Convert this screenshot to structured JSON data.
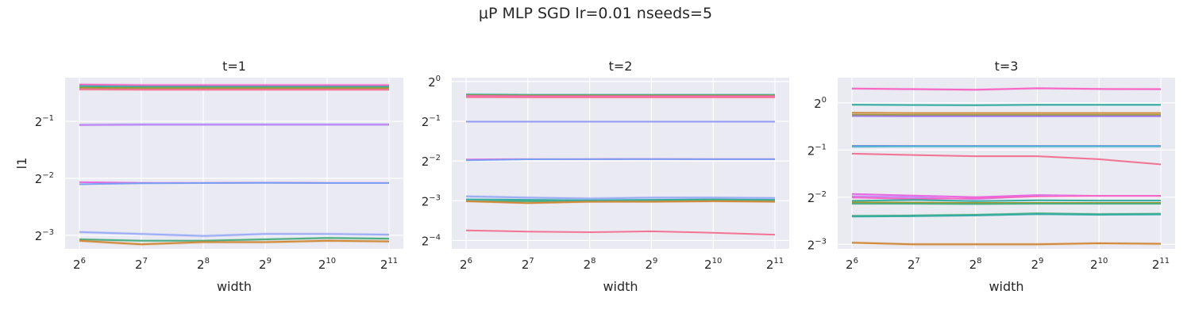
{
  "figure": {
    "title": "μP MLP SGD lr=0.01 nseeds=5"
  },
  "chart_data": [
    {
      "type": "line",
      "title": "t=1",
      "xlabel": "width",
      "ylabel": "l1",
      "x_scale": "log2",
      "y_scale": "log2",
      "x": [
        64,
        128,
        256,
        512,
        1024,
        2048
      ],
      "xticks": [
        {
          "base": "2",
          "exp": "6"
        },
        {
          "base": "2",
          "exp": "7"
        },
        {
          "base": "2",
          "exp": "8"
        },
        {
          "base": "2",
          "exp": "9"
        },
        {
          "base": "2",
          "exp": "10"
        },
        {
          "base": "2",
          "exp": "11"
        }
      ],
      "yticks": [
        {
          "base": "2",
          "exp": "−1",
          "value": 0.5
        },
        {
          "base": "2",
          "exp": "−2",
          "value": 0.25
        },
        {
          "base": "2",
          "exp": "−3",
          "value": 0.125
        }
      ],
      "ylim": [
        0.106,
        0.85
      ],
      "grid": true,
      "series": [
        {
          "color": "#f766c5",
          "values": [
            0.781,
            0.776,
            0.776,
            0.776,
            0.776,
            0.776
          ],
          "band": 0.006
        },
        {
          "color": "#36ada4",
          "values": [
            0.766,
            0.761,
            0.761,
            0.761,
            0.761,
            0.761
          ],
          "band": 0.005
        },
        {
          "color": "#9a9a30",
          "values": [
            0.751,
            0.748,
            0.748,
            0.748,
            0.748,
            0.748
          ],
          "band": 0.005
        },
        {
          "color": "#f37394",
          "values": [
            0.737,
            0.735,
            0.735,
            0.735,
            0.735,
            0.735
          ],
          "band": 0.005
        },
        {
          "color": "#8f9af4",
          "values": [
            0.479,
            0.481,
            0.481,
            0.481,
            0.481,
            0.481
          ],
          "band": 0.006
        },
        {
          "color": "#c58af9",
          "values": [
            0.478,
            0.48,
            0.48,
            0.48,
            0.48,
            0.48
          ],
          "band": 0.004
        },
        {
          "color": "#e86ae0",
          "values": [
            0.2385,
            0.2365,
            0.2365,
            0.237,
            0.2365,
            0.2365
          ],
          "band": 0.0025
        },
        {
          "color": "#7a9ef2",
          "values": [
            0.2325,
            0.2355,
            0.236,
            0.2365,
            0.236,
            0.236
          ],
          "band": 0.003
        },
        {
          "color": "#9cadf5",
          "values": [
            0.13,
            0.127,
            0.124,
            0.127,
            0.127,
            0.126
          ],
          "band": 0.006
        },
        {
          "color": "#4cae83",
          "values": [
            0.119,
            0.117,
            0.117,
            0.119,
            0.121,
            0.12
          ],
          "band": 0.005
        },
        {
          "color": "#cf8a3a",
          "values": [
            0.117,
            0.112,
            0.115,
            0.115,
            0.117,
            0.116
          ],
          "band": 0.006
        }
      ]
    },
    {
      "type": "line",
      "title": "t=2",
      "xlabel": "width",
      "ylabel": "",
      "x_scale": "log2",
      "y_scale": "log2",
      "x": [
        64,
        128,
        256,
        512,
        1024,
        2048
      ],
      "xticks": [
        {
          "base": "2",
          "exp": "6"
        },
        {
          "base": "2",
          "exp": "7"
        },
        {
          "base": "2",
          "exp": "8"
        },
        {
          "base": "2",
          "exp": "9"
        },
        {
          "base": "2",
          "exp": "10"
        },
        {
          "base": "2",
          "exp": "11"
        }
      ],
      "yticks": [
        {
          "base": "2",
          "exp": "0",
          "value": 1
        },
        {
          "base": "2",
          "exp": "−1",
          "value": 0.5
        },
        {
          "base": "2",
          "exp": "−2",
          "value": 0.25
        },
        {
          "base": "2",
          "exp": "−3",
          "value": 0.125
        },
        {
          "base": "2",
          "exp": "−4",
          "value": 0.0625
        }
      ],
      "ylim": [
        0.054,
        1.07
      ],
      "grid": true,
      "series": [
        {
          "color": "#36ada4",
          "values": [
            0.797,
            0.793,
            0.793,
            0.793,
            0.793,
            0.793
          ],
          "band": 0.008
        },
        {
          "color": "#9a9a30",
          "values": [
            0.787,
            0.783,
            0.783,
            0.783,
            0.783,
            0.783
          ],
          "band": 0.006
        },
        {
          "color": "#f766c5",
          "values": [
            0.777,
            0.773,
            0.773,
            0.773,
            0.773,
            0.773
          ],
          "band": 0.006
        },
        {
          "color": "#f37394",
          "values": [
            0.762,
            0.76,
            0.76,
            0.76,
            0.76,
            0.76
          ],
          "band": 0.006
        },
        {
          "color": "#8f9af4",
          "values": [
            0.4965,
            0.4965,
            0.4965,
            0.4965,
            0.4965,
            0.4965
          ],
          "band": 0.004
        },
        {
          "color": "#e86ae0",
          "values": [
            0.2565,
            0.2585,
            0.2585,
            0.259,
            0.2585,
            0.2585
          ],
          "band": 0.003
        },
        {
          "color": "#7a9ef2",
          "values": [
            0.253,
            0.2575,
            0.258,
            0.2585,
            0.258,
            0.258
          ],
          "band": 0.003
        },
        {
          "color": "#9cadf5",
          "values": [
            0.135,
            0.132,
            0.13,
            0.132,
            0.132,
            0.131
          ],
          "band": 0.008
        },
        {
          "color": "#36ada4",
          "values": [
            0.128,
            0.127,
            0.126,
            0.127,
            0.128,
            0.127
          ],
          "band": 0.005
        },
        {
          "color": "#4cae83",
          "values": [
            0.124,
            0.124,
            0.123,
            0.124,
            0.126,
            0.125
          ],
          "band": 0.006
        },
        {
          "color": "#cf8a3a",
          "values": [
            0.124,
            0.12,
            0.123,
            0.123,
            0.124,
            0.123
          ],
          "band": 0.007
        },
        {
          "color": "#f37394",
          "values": [
            0.0745,
            0.073,
            0.0722,
            0.0733,
            0.0715,
            0.0692
          ],
          "band": 0.0025
        }
      ]
    },
    {
      "type": "line",
      "title": "t=3",
      "xlabel": "width",
      "ylabel": "",
      "x_scale": "log2",
      "y_scale": "log2",
      "x": [
        64,
        128,
        256,
        512,
        1024,
        2048
      ],
      "xticks": [
        {
          "base": "2",
          "exp": "6"
        },
        {
          "base": "2",
          "exp": "7"
        },
        {
          "base": "2",
          "exp": "8"
        },
        {
          "base": "2",
          "exp": "9"
        },
        {
          "base": "2",
          "exp": "10"
        },
        {
          "base": "2",
          "exp": "11"
        }
      ],
      "yticks": [
        {
          "base": "2",
          "exp": "0",
          "value": 1
        },
        {
          "base": "2",
          "exp": "−1",
          "value": 0.5
        },
        {
          "base": "2",
          "exp": "−2",
          "value": 0.25
        },
        {
          "base": "2",
          "exp": "−3",
          "value": 0.125
        }
      ],
      "ylim": [
        0.117,
        1.45
      ],
      "grid": true,
      "series": [
        {
          "color": "#f766c5",
          "values": [
            1.235,
            1.225,
            1.215,
            1.24,
            1.228,
            1.225
          ],
          "band": 0.006
        },
        {
          "color": "#36ada4",
          "values": [
            0.975,
            0.97,
            0.968,
            0.972,
            0.972,
            0.972
          ],
          "band": 0.005
        },
        {
          "color": "#cf8a3a",
          "values": [
            0.865,
            0.862,
            0.862,
            0.862,
            0.862,
            0.862
          ],
          "band": 0.004
        },
        {
          "color": "#9a9a30",
          "values": [
            0.84,
            0.838,
            0.838,
            0.838,
            0.838,
            0.838
          ],
          "band": 0.004
        },
        {
          "color": "#9c78e8",
          "values": [
            0.825,
            0.823,
            0.823,
            0.823,
            0.823,
            0.823
          ],
          "band": 0.004
        },
        {
          "color": "#4c7cd8",
          "values": [
            0.531,
            0.531,
            0.531,
            0.531,
            0.531,
            0.531
          ],
          "band": 0.004
        },
        {
          "color": "#5cb8d4",
          "values": [
            0.525,
            0.527,
            0.527,
            0.527,
            0.527,
            0.527
          ],
          "band": 0.003
        },
        {
          "color": "#f37394",
          "values": [
            0.474,
            0.465,
            0.457,
            0.457,
            0.437,
            0.405
          ],
          "band": 0.004
        },
        {
          "color": "#e86ae0",
          "values": [
            0.262,
            0.256,
            0.25,
            0.258,
            0.255,
            0.255
          ],
          "band": 0.004
        },
        {
          "color": "#c58af9",
          "values": [
            0.254,
            0.25,
            0.243,
            0.255,
            0.255,
            0.255
          ],
          "band": 0.004
        },
        {
          "color": "#f766c5",
          "values": [
            0.249,
            0.244,
            0.246,
            0.253,
            0.255,
            0.255
          ],
          "band": 0.004
        },
        {
          "color": "#36ada4",
          "values": [
            0.237,
            0.24,
            0.236,
            0.239,
            0.238,
            0.238
          ],
          "band": 0.004
        },
        {
          "color": "#9a9a30",
          "values": [
            0.232,
            0.231,
            0.23,
            0.23,
            0.23,
            0.23
          ],
          "band": 0.003
        },
        {
          "color": "#4cae83",
          "values": [
            0.227,
            0.227,
            0.226,
            0.227,
            0.227,
            0.227
          ],
          "band": 0.003
        },
        {
          "color": "#4cae83",
          "values": [
            0.19,
            0.191,
            0.193,
            0.197,
            0.195,
            0.196
          ],
          "band": 0.006
        },
        {
          "color": "#36ada4",
          "values": [
            0.188,
            0.189,
            0.191,
            0.195,
            0.193,
            0.194
          ],
          "band": 0.004
        },
        {
          "color": "#cf8a3a",
          "values": [
            0.128,
            0.125,
            0.125,
            0.125,
            0.127,
            0.126
          ],
          "band": 0.007
        }
      ]
    }
  ]
}
